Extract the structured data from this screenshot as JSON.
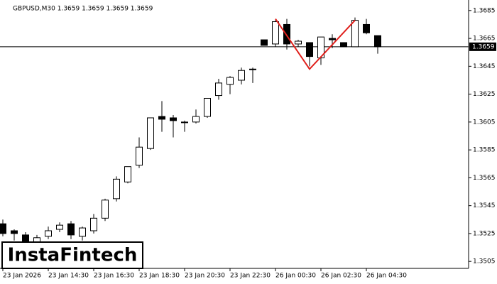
{
  "chart_data": {
    "type": "candlestick",
    "title": "GBPUSD,M30  1.3659 1.3659 1.3659 1.3659",
    "categories": [
      "23 Jan 2026",
      null,
      null,
      null,
      "23 Jan 14:30",
      null,
      null,
      null,
      "23 Jan 16:30",
      null,
      null,
      null,
      "23 Jan 18:30",
      null,
      null,
      null,
      "23 Jan 20:30",
      null,
      null,
      null,
      "23 Jan 22:30",
      null,
      null,
      null,
      "26 Jan 00:30",
      null,
      null,
      null,
      "26 Jan 02:30",
      null,
      null,
      null,
      "26 Jan 04:30",
      null
    ],
    "open": [
      1.3532,
      1.3527,
      1.3524,
      1.3519,
      1.3523,
      1.3528,
      1.3532,
      1.3523,
      1.3527,
      1.3536,
      1.355,
      1.3562,
      1.3574,
      1.3586,
      1.3609,
      1.3608,
      1.3605,
      1.3605,
      1.3609,
      1.3624,
      1.3632,
      1.3635,
      1.3643,
      1.3664,
      1.3661,
      1.3675,
      1.3661,
      1.3662,
      1.3651,
      1.3665,
      1.3662,
      1.3659,
      1.3675,
      1.3667
    ],
    "high": [
      1.3535,
      1.3528,
      1.3526,
      1.3524,
      1.353,
      1.3533,
      1.3534,
      1.353,
      1.3539,
      1.355,
      1.3566,
      1.3573,
      1.3594,
      1.3608,
      1.362,
      1.361,
      1.3606,
      1.3614,
      1.3622,
      1.3636,
      1.3638,
      1.3644,
      1.3644,
      1.3664,
      1.3678,
      1.3679,
      1.3664,
      1.3662,
      1.3666,
      1.3668,
      1.3662,
      1.368,
      1.3679,
      1.3667
    ],
    "low": [
      1.3523,
      1.352,
      1.3517,
      1.3517,
      1.3521,
      1.3526,
      1.3521,
      1.352,
      1.3525,
      1.3534,
      1.3548,
      1.3561,
      1.3572,
      1.3585,
      1.3598,
      1.3594,
      1.3598,
      1.3604,
      1.3608,
      1.3621,
      1.3625,
      1.3632,
      1.3633,
      1.366,
      1.3659,
      1.3657,
      1.3659,
      1.3645,
      1.3646,
      1.3658,
      1.3659,
      1.3659,
      1.3668,
      1.3654
    ],
    "close": [
      1.3525,
      1.3525,
      1.3519,
      1.3522,
      1.3527,
      1.3531,
      1.3524,
      1.3529,
      1.3536,
      1.3549,
      1.3564,
      1.3573,
      1.3587,
      1.3608,
      1.3607,
      1.3606,
      1.3605,
      1.3609,
      1.3622,
      1.3633,
      1.3637,
      1.3642,
      1.3643,
      1.366,
      1.3677,
      1.3661,
      1.3663,
      1.3652,
      1.3666,
      1.3664,
      1.3659,
      1.3678,
      1.3669,
      1.3659
    ],
    "up_color": "#ffffff",
    "down_color": "#000000",
    "current_price": 1.3659,
    "pattern_line": {
      "color": "#e0201c",
      "index": [
        24,
        27,
        31
      ],
      "values": [
        1.3679,
        1.3643,
        1.3678
      ]
    },
    "ylim": [
      1.35,
      1.369
    ],
    "yticks": [
      1.3505,
      1.3525,
      1.3545,
      1.3565,
      1.3585,
      1.3605,
      1.3625,
      1.3645,
      1.3665,
      1.3685
    ],
    "logo": "InstaFintech"
  }
}
